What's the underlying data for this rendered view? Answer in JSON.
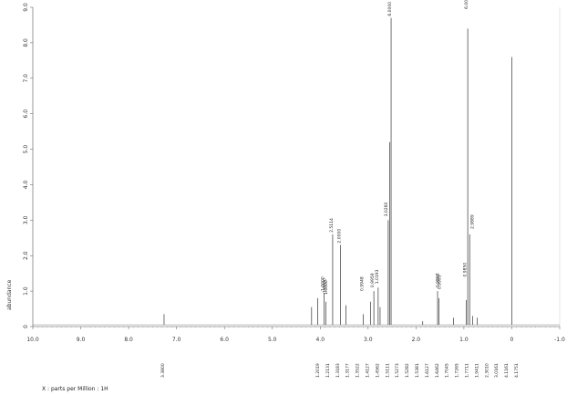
{
  "chart_data": {
    "type": "line",
    "title": "",
    "xlabel": "X : parts per Million : 1H",
    "ylabel": "abundance",
    "xlim": [
      10.0,
      -1.0
    ],
    "ylim": [
      0,
      9.0
    ],
    "x_ticks": [
      "10.0",
      "9.0",
      "8.0",
      "7.0",
      "6.0",
      "5.0",
      "4.0",
      "3.0",
      "2.0",
      "1.0",
      "0",
      "-1.0"
    ],
    "y_ticks": [
      "0",
      "1.0",
      "2.0",
      "3.0",
      "4.0",
      "5.0",
      "6.0",
      "7.0",
      "8.0",
      "9.0"
    ],
    "peaks": [
      {
        "x": 7.26,
        "y": 0.35
      },
      {
        "x": 4.18,
        "y": 0.55
      },
      {
        "x": 4.05,
        "y": 0.8
      },
      {
        "x": 3.92,
        "y": 0.95
      },
      {
        "x": 3.88,
        "y": 0.7
      },
      {
        "x": 3.74,
        "y": 2.6
      },
      {
        "x": 3.58,
        "y": 2.3
      },
      {
        "x": 3.46,
        "y": 0.6
      },
      {
        "x": 3.1,
        "y": 0.35
      },
      {
        "x": 2.95,
        "y": 0.7
      },
      {
        "x": 2.88,
        "y": 1.0
      },
      {
        "x": 2.79,
        "y": 1.1
      },
      {
        "x": 2.75,
        "y": 0.55
      },
      {
        "x": 2.58,
        "y": 3.0
      },
      {
        "x": 2.55,
        "y": 5.2
      },
      {
        "x": 2.52,
        "y": 8.7
      },
      {
        "x": 1.86,
        "y": 0.15
      },
      {
        "x": 1.55,
        "y": 1.0
      },
      {
        "x": 1.52,
        "y": 0.8
      },
      {
        "x": 1.22,
        "y": 0.25
      },
      {
        "x": 0.95,
        "y": 0.75
      },
      {
        "x": 0.92,
        "y": 8.4
      },
      {
        "x": 0.88,
        "y": 2.6
      },
      {
        "x": 0.82,
        "y": 0.3
      },
      {
        "x": 0.72,
        "y": 0.25
      },
      {
        "x": 0.0,
        "y": 7.6
      }
    ],
    "peak_labels": [
      {
        "x": 3.92,
        "y": 0.95,
        "text": "1.0000"
      },
      {
        "x": 3.88,
        "y": 0.9,
        "text": "1.0000"
      },
      {
        "x": 3.85,
        "y": 0.85,
        "text": "1.0000"
      },
      {
        "x": 3.74,
        "y": 2.6,
        "text": "2.5114"
      },
      {
        "x": 3.58,
        "y": 2.3,
        "text": "2.0000"
      },
      {
        "x": 3.1,
        "y": 0.95,
        "text": "0.9948"
      },
      {
        "x": 2.88,
        "y": 1.05,
        "text": "0.9959"
      },
      {
        "x": 2.79,
        "y": 1.15,
        "text": "1.0193"
      },
      {
        "x": 2.6,
        "y": 3.05,
        "text": "3.0260"
      },
      {
        "x": 2.52,
        "y": 8.7,
        "text": "6.0000"
      },
      {
        "x": 1.52,
        "y": 1.05,
        "text": "0.9868"
      },
      {
        "x": 1.48,
        "y": 1.0,
        "text": "0.9993"
      },
      {
        "x": 0.95,
        "y": 1.35,
        "text": "0.9850"
      },
      {
        "x": 0.92,
        "y": 8.9,
        "text": "6.0000"
      },
      {
        "x": 0.8,
        "y": 2.7,
        "text": "2.9889"
      }
    ],
    "integrals_bottom": [
      "3.3800",
      "1.2019",
      "1.2131",
      "1.3183",
      "1.3177",
      "1.3522",
      "1.4127",
      "1.4562",
      "1.5111",
      "1.5273",
      "1.5282",
      "1.5381",
      "1.6127",
      "1.6462",
      "1.7045",
      "1.7265",
      "1.7711",
      "1.9411",
      "2.3010",
      "3.0161",
      "4.1161",
      "4.1751"
    ],
    "grid": false,
    "legend": "none"
  }
}
